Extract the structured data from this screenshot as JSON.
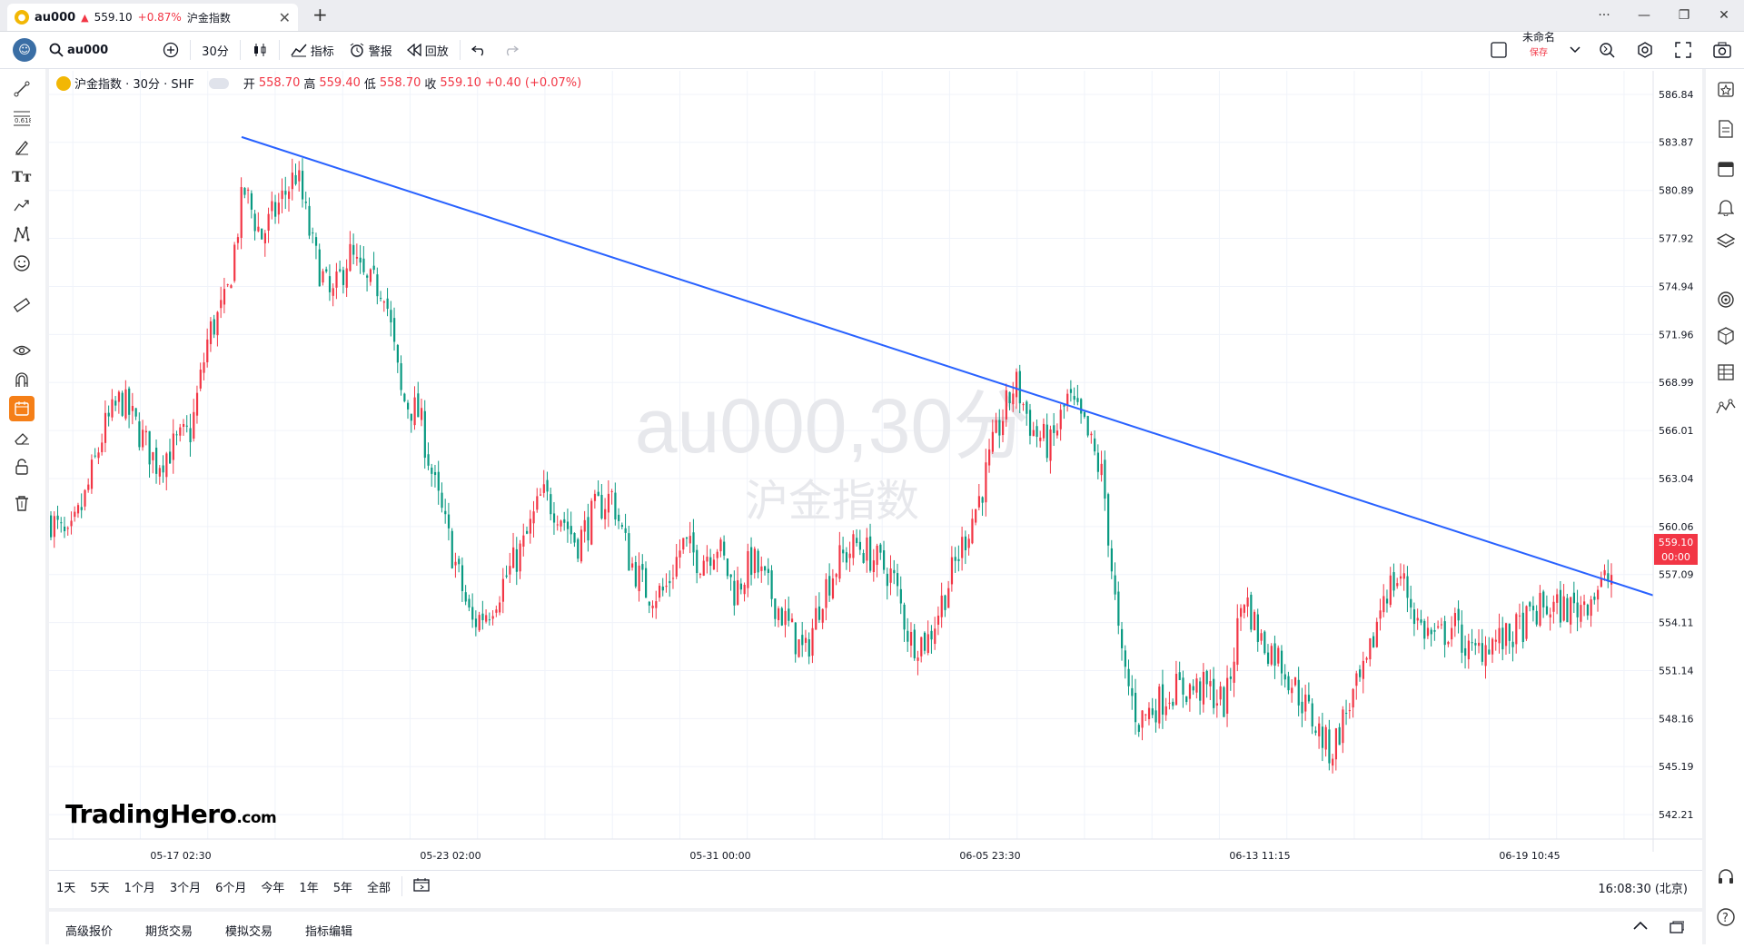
{
  "tab": {
    "symbol": "au000",
    "arrow": "▲",
    "price": "559.10",
    "change": "+0.87%",
    "name": "沪金指数",
    "close": "✕",
    "new_tab": "+"
  },
  "window_controls": [
    "···",
    "—",
    "❐",
    "✕"
  ],
  "toolbar": {
    "symbol": "au000",
    "interval": "30分",
    "indicators": "指标",
    "alerts": "警报",
    "replay": "回放",
    "layout_name": "未命名",
    "save_label": "保存"
  },
  "legend": {
    "title": "沪金指数 · 30分 · SHF",
    "open_label": "开",
    "open": "558.70",
    "high_label": "高",
    "high": "559.40",
    "low_label": "低",
    "low": "558.70",
    "close_label": "收",
    "close": "559.10",
    "change": "+0.40 (+0.07%)"
  },
  "watermark": {
    "line1": "au000,30分",
    "line2": "沪金指数"
  },
  "brand": {
    "name": "TradingHero",
    "suffix": ".com"
  },
  "colors": {
    "up": "#f23645",
    "down": "#089981",
    "trendline": "#2962ff",
    "accent": "#f57f17"
  },
  "ranges": [
    "1天",
    "5天",
    "1个月",
    "3个月",
    "6个月",
    "今年",
    "1年",
    "5年",
    "全部"
  ],
  "clock": "16:08:30 (北京)",
  "panel_tabs": [
    "高级报价",
    "期货交易",
    "模拟交易",
    "指标编辑"
  ],
  "chart_data": {
    "type": "candlestick",
    "y_ticks": [
      "586.84",
      "583.87",
      "580.89",
      "577.92",
      "574.94",
      "571.96",
      "568.99",
      "566.01",
      "563.04",
      "560.06",
      "557.09",
      "554.11",
      "551.14",
      "548.16",
      "545.19",
      "542.21"
    ],
    "ylim": [
      540.7,
      588.3
    ],
    "x_ticks": [
      "05-17 02:30",
      "05-23 02:00",
      "05-31 00:00",
      "06-05 23:30",
      "06-13 11:15",
      "06-19 10:45"
    ],
    "last_price": "559.10",
    "last_time": "00:00",
    "price_path": [
      560.5,
      559,
      562,
      566,
      568,
      566,
      564,
      565,
      566,
      572,
      574,
      581,
      578,
      580,
      582,
      577,
      574,
      577,
      575,
      575,
      568,
      567,
      562,
      558,
      554,
      555,
      557,
      559,
      562,
      561,
      559,
      561,
      562,
      558,
      556,
      556,
      559,
      558,
      559,
      556,
      558,
      556,
      554,
      552,
      556,
      558,
      559,
      558,
      557,
      553,
      553,
      556,
      559,
      562,
      566,
      569,
      566,
      565,
      568,
      566,
      563,
      552,
      548,
      549,
      550,
      550,
      550,
      549,
      556,
      553,
      552,
      550,
      548,
      546,
      549,
      551,
      556,
      557,
      554,
      553,
      554,
      552,
      553,
      553,
      554,
      555,
      555,
      555,
      556,
      557
    ],
    "trendline": {
      "start_x": "05-19",
      "start_y": 584.2,
      "end_x": "06-22",
      "end_y": 555.8
    }
  }
}
